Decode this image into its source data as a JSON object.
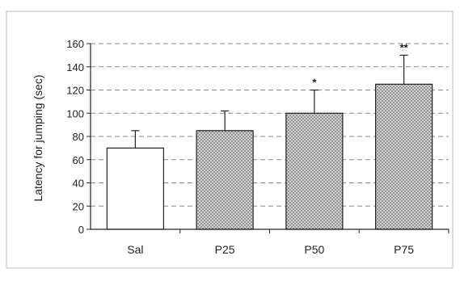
{
  "chart_data": {
    "type": "bar",
    "title": "",
    "xlabel": "",
    "ylabel": "Latency for jumping (sec)",
    "ylim": [
      0,
      160
    ],
    "yticks": [
      0,
      20,
      40,
      60,
      80,
      100,
      120,
      140,
      160
    ],
    "grid": true,
    "categories": [
      "Sal",
      "P25",
      "P50",
      "P75"
    ],
    "values": [
      70,
      85,
      100,
      125
    ],
    "errors": [
      15,
      17,
      20,
      25
    ],
    "significance": [
      "",
      "",
      "*",
      "**"
    ],
    "bar_fills": [
      "plain",
      "dotted",
      "dotted",
      "dotted"
    ],
    "colors": {
      "bar_plain": "#ffffff",
      "bar_dotted": "#c8c8c8",
      "stroke": "#222222",
      "grid": "#888888"
    }
  }
}
